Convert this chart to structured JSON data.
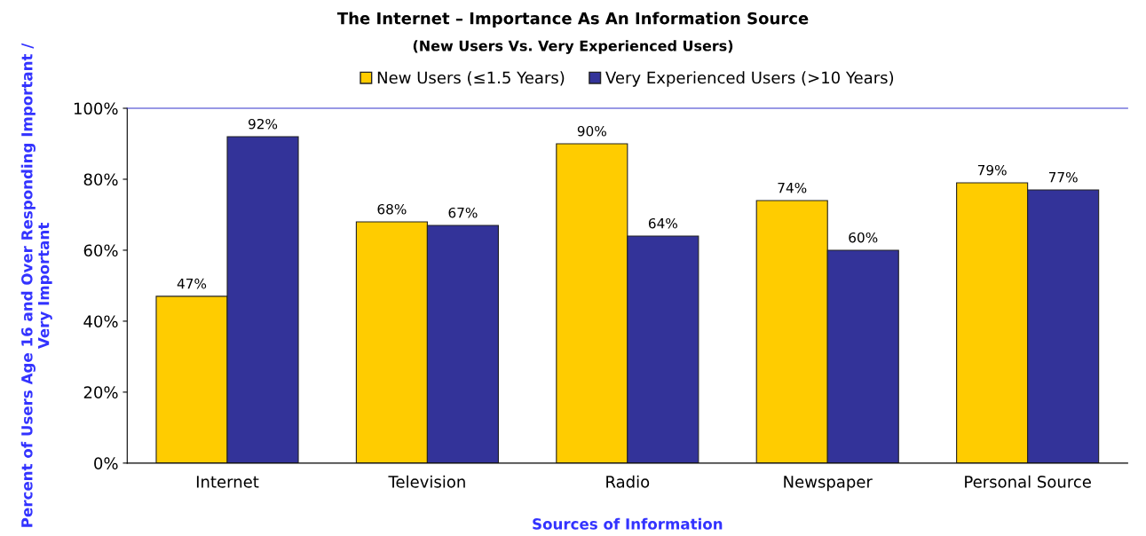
{
  "chart_data": {
    "type": "bar",
    "title": "The Internet – Importance As An Information Source",
    "subtitle": "(New Users Vs. Very Experienced Users)",
    "xlabel": "Sources of Information",
    "ylabel": "Percent of Users Age 16 and Over Responding Important / Very Important",
    "categories": [
      "Internet",
      "Television",
      "Radio",
      "Newspaper",
      "Personal Source"
    ],
    "series": [
      {
        "name": "New Users (≤1.5 Years)",
        "color": "#ffcc00",
        "values": [
          47,
          68,
          90,
          74,
          79
        ],
        "value_labels": [
          "47%",
          "68%",
          "90%",
          "74%",
          "79%"
        ]
      },
      {
        "name": "Very Experienced Users (>10 Years)",
        "color": "#333399",
        "values": [
          92,
          67,
          64,
          60,
          77
        ],
        "value_labels": [
          "92%",
          "67%",
          "64%",
          "60%",
          "77%"
        ]
      }
    ],
    "ylim": [
      0,
      100
    ],
    "yticks": [
      {
        "value": 0,
        "label": "0%"
      },
      {
        "value": 20,
        "label": "20%"
      },
      {
        "value": 40,
        "label": "40%"
      },
      {
        "value": 60,
        "label": "60%"
      },
      {
        "value": 80,
        "label": "80%"
      },
      {
        "value": 100,
        "label": "100%"
      }
    ],
    "grid": false,
    "legend": "top"
  }
}
